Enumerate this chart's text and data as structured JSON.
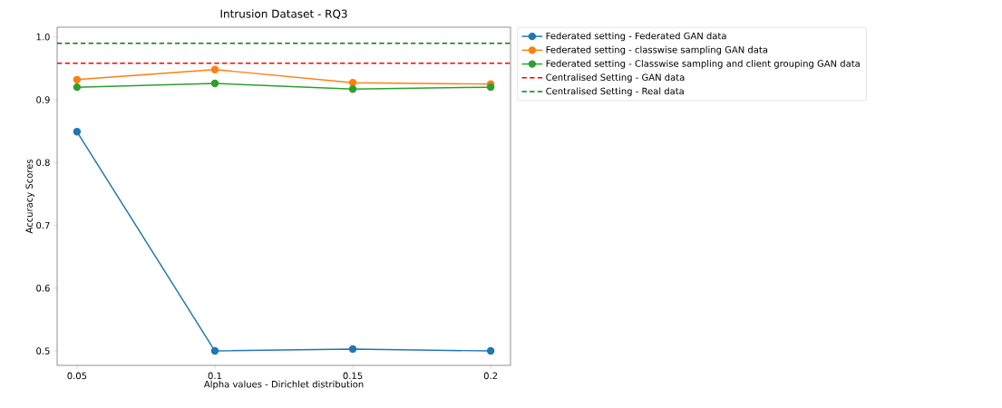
{
  "chart_data": {
    "type": "line",
    "title": "Intrusion Dataset - RQ3",
    "xlabel": "Alpha values - Dirichlet distribution",
    "ylabel": "Accuracy Scores",
    "x": [
      0.05,
      0.1,
      0.15,
      0.2
    ],
    "series": [
      {
        "name": "Federated setting - Federated GAN data",
        "color": "#1f77b4",
        "values": [
          0.849,
          0.5,
          0.503,
          0.5
        ]
      },
      {
        "name": "Federated setting - classwise sampling GAN data",
        "color": "#ff7f0e",
        "values": [
          0.932,
          0.948,
          0.927,
          0.925
        ]
      },
      {
        "name": "Federated setting - Classwise sampling and client grouping GAN data",
        "color": "#2ca02c",
        "values": [
          0.92,
          0.926,
          0.917,
          0.92
        ]
      }
    ],
    "ref_lines": [
      {
        "axis": "y",
        "value": 0.958,
        "label": "Centralised Setting - GAN data",
        "color": "#ff0000",
        "line_style": "dashed"
      },
      {
        "axis": "y",
        "value": 0.99,
        "label": "Centralised Setting - Real data",
        "color": "#008000",
        "line_style": "dashed"
      }
    ],
    "xlim": [
      0.0428,
      0.2072
    ],
    "ylim": [
      0.477,
      1.0155
    ],
    "xticks": [
      0.05,
      0.1,
      0.15,
      0.2
    ],
    "yticks": [
      0.5,
      0.6,
      0.7,
      0.8,
      0.9,
      {
        "value": 1.0,
        "label": "1.0"
      }
    ],
    "marker": "circle",
    "line_style": "solid",
    "grid": false,
    "legend": "top right"
  }
}
